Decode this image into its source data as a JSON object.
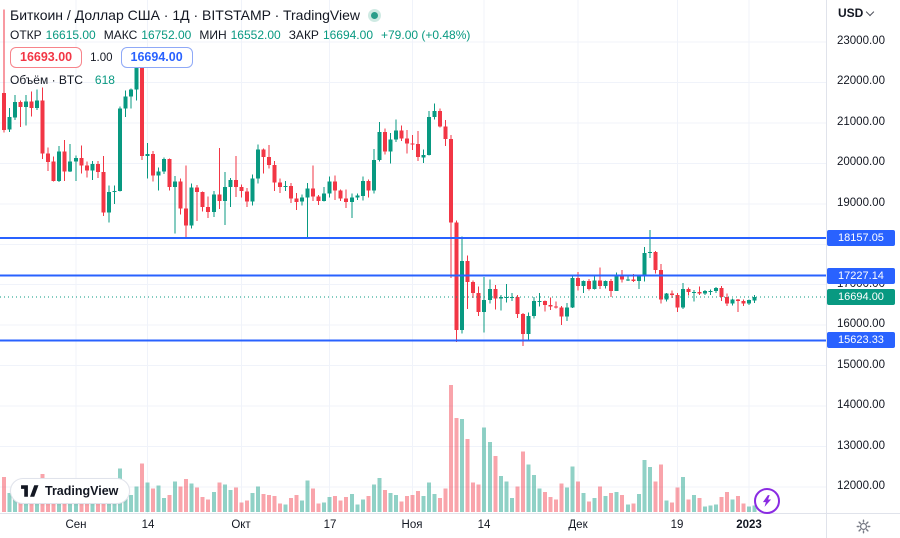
{
  "header": {
    "symbol_title": "Биткоин / Доллар США · 1Д · BITSTAMP · TradingView",
    "ohlc": [
      {
        "label": "ОТКР",
        "value": "16615.00"
      },
      {
        "label": "МАКС",
        "value": "16752.00"
      },
      {
        "label": "МИН",
        "value": "16552.00"
      },
      {
        "label": "ЗАКР",
        "value": "16694.00"
      }
    ],
    "change": "+79.00 (+0.48%)",
    "sell_price": "16693.00",
    "spread": "1.00",
    "buy_price": "16694.00",
    "volume_label": "Объём · BTC",
    "volume_value": "618"
  },
  "price_axis": {
    "currency_label": "USD",
    "ticks": [
      "23000.00",
      "22000.00",
      "21000.00",
      "20000.00",
      "19000.00",
      "18000.00",
      "17000.00",
      "16000.00",
      "15000.00",
      "14000.00",
      "13000.00",
      "12000.00"
    ]
  },
  "watermark": {
    "text": "TradingView"
  },
  "colors": {
    "up": "#089981",
    "down": "#f23645",
    "up_vol": "rgba(8,153,129,0.45)",
    "down_vol": "rgba(242,54,69,0.45)",
    "level_line": "#2962ff",
    "last_price": "#089981",
    "grid": "#f0f3fa",
    "purple": "#8a2be2",
    "icon_gray": "#787b86"
  },
  "chart_data": {
    "type": "candlestick",
    "title": "Биткоин / Доллар США, 1Д, BITSTAMP",
    "y_axis": {
      "min": 12000,
      "max": 23000,
      "tick_step": 1000
    },
    "price_levels": [
      {
        "price": 18157.05,
        "label": "18157.05"
      },
      {
        "price": 17227.14,
        "label": "17227.14"
      },
      {
        "price": 15623.33,
        "label": "15623.33"
      }
    ],
    "last_price": {
      "price": 16694.0,
      "label": "16694.00"
    },
    "x_ticks": [
      {
        "index": 13,
        "label": "Сен",
        "bold": false
      },
      {
        "index": 26,
        "label": "14",
        "bold": false
      },
      {
        "index": 43,
        "label": "Окт",
        "bold": false
      },
      {
        "index": 59,
        "label": "17",
        "bold": false
      },
      {
        "index": 74,
        "label": "Ноя",
        "bold": false
      },
      {
        "index": 87,
        "label": "14",
        "bold": false
      },
      {
        "index": 104,
        "label": "Дек",
        "bold": false
      },
      {
        "index": 122,
        "label": "19",
        "bold": false
      },
      {
        "index": 135,
        "label": "2023",
        "bold": true
      }
    ],
    "candles": {
      "columns": [
        "open",
        "high",
        "low",
        "close",
        "volume"
      ],
      "rows": [
        [
          21740,
          23800,
          20760,
          20830,
          3300
        ],
        [
          20830,
          21370,
          20770,
          21140,
          1800
        ],
        [
          21140,
          21690,
          21070,
          21520,
          1600
        ],
        [
          21520,
          21560,
          20900,
          21400,
          2300
        ],
        [
          21400,
          21690,
          20930,
          21530,
          2100
        ],
        [
          21530,
          21780,
          21160,
          21370,
          1900
        ],
        [
          21370,
          21820,
          21320,
          21560,
          1700
        ],
        [
          21560,
          21870,
          20110,
          20240,
          3600
        ],
        [
          20240,
          20390,
          19810,
          20040,
          1500
        ],
        [
          20040,
          20170,
          19550,
          19560,
          1400
        ],
        [
          19560,
          20430,
          19540,
          20290,
          2200
        ],
        [
          20290,
          20580,
          19560,
          19800,
          2500
        ],
        [
          19800,
          20480,
          19790,
          20050,
          2000
        ],
        [
          20050,
          20200,
          19560,
          20130,
          1900
        ],
        [
          20130,
          20440,
          19750,
          19950,
          1700
        ],
        [
          19950,
          20050,
          19650,
          19830,
          1100
        ],
        [
          19830,
          20060,
          19590,
          19990,
          1200
        ],
        [
          19990,
          20060,
          19640,
          19790,
          1500
        ],
        [
          19790,
          20180,
          18700,
          18790,
          3200
        ],
        [
          18790,
          19450,
          18540,
          19290,
          2600
        ],
        [
          19290,
          19450,
          19000,
          19320,
          1800
        ],
        [
          19320,
          21400,
          19300,
          21360,
          4100
        ],
        [
          21360,
          21800,
          21150,
          21650,
          1900
        ],
        [
          21650,
          21850,
          21350,
          21830,
          1600
        ],
        [
          21830,
          22480,
          21550,
          22400,
          2400
        ],
        [
          22400,
          22670,
          20080,
          20180,
          4600
        ],
        [
          20180,
          20500,
          19620,
          20230,
          2800
        ],
        [
          20230,
          20300,
          19550,
          19700,
          2200
        ],
        [
          19700,
          19900,
          19330,
          19800,
          2500
        ],
        [
          19800,
          20150,
          19740,
          20110,
          1300
        ],
        [
          20110,
          20120,
          19330,
          19420,
          1600
        ],
        [
          19420,
          19690,
          18270,
          19550,
          2900
        ],
        [
          19550,
          19630,
          18740,
          18880,
          2400
        ],
        [
          18880,
          19950,
          18150,
          18460,
          3100
        ],
        [
          18460,
          19500,
          18390,
          19400,
          2700
        ],
        [
          19400,
          19460,
          18570,
          19290,
          2300
        ],
        [
          19290,
          19310,
          18810,
          18920,
          1400
        ],
        [
          18920,
          19180,
          18650,
          18800,
          1200
        ],
        [
          18800,
          19320,
          18680,
          19230,
          1900
        ],
        [
          19230,
          20380,
          18870,
          19070,
          2800
        ],
        [
          19070,
          19790,
          18480,
          19410,
          2600
        ],
        [
          19410,
          19640,
          18920,
          19590,
          2100
        ],
        [
          19590,
          20180,
          19170,
          19420,
          2300
        ],
        [
          19420,
          19480,
          19160,
          19310,
          900
        ],
        [
          19310,
          19390,
          18920,
          19060,
          1100
        ],
        [
          19060,
          19720,
          18960,
          19630,
          1800
        ],
        [
          19630,
          20470,
          19500,
          20340,
          2400
        ],
        [
          20340,
          20370,
          19750,
          20160,
          1700
        ],
        [
          20160,
          20450,
          19870,
          19960,
          1600
        ],
        [
          19960,
          20060,
          19320,
          19530,
          1500
        ],
        [
          19530,
          19620,
          19270,
          19420,
          800
        ],
        [
          19420,
          19560,
          19320,
          19440,
          700
        ],
        [
          19440,
          19520,
          19020,
          19130,
          1300
        ],
        [
          19130,
          19270,
          18850,
          19050,
          1600
        ],
        [
          19050,
          19230,
          18960,
          19150,
          1100
        ],
        [
          19150,
          19510,
          18130,
          19380,
          3000
        ],
        [
          19380,
          19950,
          19070,
          19180,
          2200
        ],
        [
          19180,
          19220,
          18970,
          19070,
          800
        ],
        [
          19070,
          19420,
          19060,
          19260,
          900
        ],
        [
          19260,
          19670,
          19160,
          19550,
          1400
        ],
        [
          19550,
          19700,
          19090,
          19330,
          1500
        ],
        [
          19330,
          19350,
          19070,
          19130,
          1100
        ],
        [
          19130,
          19350,
          18900,
          19040,
          1400
        ],
        [
          19040,
          19250,
          18650,
          19160,
          1700
        ],
        [
          19160,
          19250,
          19090,
          19200,
          700
        ],
        [
          19200,
          19680,
          19080,
          19570,
          1200
        ],
        [
          19570,
          19600,
          19160,
          19330,
          1500
        ],
        [
          19330,
          20350,
          19250,
          20080,
          2600
        ],
        [
          20080,
          21020,
          20050,
          20770,
          3200
        ],
        [
          20770,
          20860,
          20220,
          20290,
          2100
        ],
        [
          20290,
          20750,
          20000,
          20590,
          1800
        ],
        [
          20590,
          21080,
          20530,
          20810,
          1600
        ],
        [
          20810,
          20930,
          20550,
          20620,
          1000
        ],
        [
          20620,
          20830,
          20240,
          20490,
          1500
        ],
        [
          20490,
          20700,
          20330,
          20480,
          1600
        ],
        [
          20480,
          20800,
          20060,
          20150,
          2000
        ],
        [
          20150,
          20340,
          20010,
          20210,
          1500
        ],
        [
          20210,
          21300,
          20190,
          21150,
          2800
        ],
        [
          21150,
          21480,
          21080,
          21300,
          1700
        ],
        [
          21300,
          21360,
          20890,
          20910,
          1300
        ],
        [
          20910,
          21070,
          20430,
          20600,
          2200
        ],
        [
          20600,
          20700,
          17170,
          18540,
          12000
        ],
        [
          18540,
          18590,
          15590,
          15880,
          8900
        ],
        [
          15880,
          18190,
          15790,
          17590,
          8800
        ],
        [
          17590,
          17720,
          16400,
          17070,
          6900
        ],
        [
          17070,
          17100,
          16670,
          16800,
          2800
        ],
        [
          16800,
          16960,
          16230,
          16330,
          2600
        ],
        [
          16330,
          17190,
          15820,
          16620,
          8000
        ],
        [
          16620,
          17130,
          16540,
          16900,
          6600
        ],
        [
          16900,
          16990,
          16390,
          16660,
          5300
        ],
        [
          16660,
          16750,
          16360,
          16700,
          3400
        ],
        [
          16700,
          17020,
          16560,
          16700,
          2900
        ],
        [
          16700,
          16800,
          16600,
          16700,
          1300
        ],
        [
          16700,
          16750,
          16180,
          16280,
          2400
        ],
        [
          16280,
          16300,
          15480,
          15780,
          5700
        ],
        [
          15780,
          16310,
          15620,
          16230,
          4500
        ],
        [
          16230,
          16700,
          16160,
          16600,
          3500
        ],
        [
          16600,
          16790,
          16460,
          16600,
          2200
        ],
        [
          16600,
          16610,
          16340,
          16500,
          1900
        ],
        [
          16500,
          16690,
          16380,
          16460,
          1400
        ],
        [
          16460,
          16590,
          16410,
          16440,
          1200
        ],
        [
          16440,
          16480,
          16010,
          16210,
          2700
        ],
        [
          16210,
          16550,
          16100,
          16440,
          2300
        ],
        [
          16440,
          17250,
          16430,
          17170,
          4300
        ],
        [
          17170,
          17320,
          16860,
          16970,
          2900
        ],
        [
          16970,
          17110,
          16790,
          17090,
          1800
        ],
        [
          17090,
          17140,
          16860,
          16890,
          1000
        ],
        [
          16890,
          17200,
          16880,
          17110,
          1300
        ],
        [
          17110,
          17420,
          16890,
          16970,
          2400
        ],
        [
          16970,
          17110,
          16910,
          17090,
          1500
        ],
        [
          17090,
          17140,
          16700,
          16840,
          1800
        ],
        [
          16840,
          17300,
          16840,
          17230,
          1900
        ],
        [
          17230,
          17360,
          17060,
          17130,
          1600
        ],
        [
          17130,
          17230,
          17090,
          17130,
          700
        ],
        [
          17130,
          17270,
          17070,
          17090,
          800
        ],
        [
          17090,
          17240,
          16890,
          17210,
          1700
        ],
        [
          17210,
          17930,
          17080,
          17780,
          4900
        ],
        [
          17780,
          18350,
          17660,
          17810,
          4250
        ],
        [
          17810,
          17830,
          17280,
          17360,
          2900
        ],
        [
          17360,
          17510,
          16530,
          16630,
          4500
        ],
        [
          16630,
          16790,
          16590,
          16780,
          1100
        ],
        [
          16780,
          16860,
          16670,
          16740,
          900
        ],
        [
          16740,
          16800,
          16330,
          16440,
          2300
        ],
        [
          16440,
          17040,
          16400,
          16900,
          3300
        ],
        [
          16900,
          16930,
          16730,
          16820,
          1200
        ],
        [
          16820,
          16870,
          16580,
          16820,
          1600
        ],
        [
          16820,
          16950,
          16750,
          16780,
          1300
        ],
        [
          16780,
          16870,
          16740,
          16840,
          500
        ],
        [
          16840,
          16880,
          16740,
          16840,
          600
        ],
        [
          16840,
          16940,
          16800,
          16920,
          700
        ],
        [
          16920,
          16970,
          16600,
          16700,
          1400
        ],
        [
          16700,
          16780,
          16470,
          16540,
          1900
        ],
        [
          16540,
          16660,
          16490,
          16630,
          1200
        ],
        [
          16630,
          16650,
          16330,
          16600,
          1500
        ],
        [
          16600,
          16630,
          16470,
          16540,
          800
        ],
        [
          16540,
          16630,
          16500,
          16620,
          500
        ],
        [
          16615,
          16752,
          16552,
          16694,
          618
        ]
      ]
    }
  }
}
